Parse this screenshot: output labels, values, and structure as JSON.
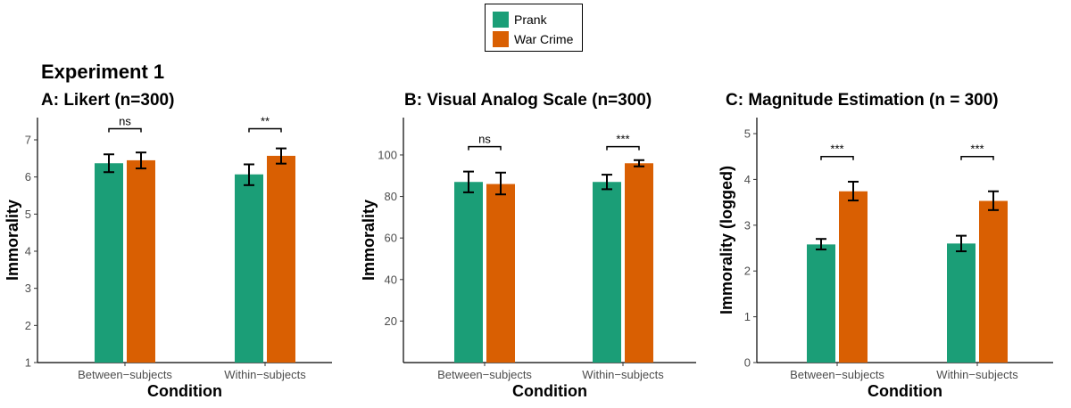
{
  "experiment_title": "Experiment 1",
  "legend": [
    {
      "label": "Prank",
      "color": "#1b9e77"
    },
    {
      "label": "War Crime",
      "color": "#d95f02"
    }
  ],
  "chart_data": [
    {
      "type": "bar",
      "title": "A: Likert (n=300)",
      "xlabel": "Condition",
      "ylabel": "Immorality",
      "ylim": [
        1,
        7.6
      ],
      "yticks": [
        1,
        2,
        3,
        4,
        5,
        6,
        7
      ],
      "categories": [
        "Between−subjects",
        "Within−subjects"
      ],
      "series": [
        {
          "name": "Prank",
          "values": [
            6.37,
            6.07
          ],
          "err_low": [
            6.13,
            5.78
          ],
          "err_high": [
            6.61,
            6.34
          ]
        },
        {
          "name": "War Crime",
          "values": [
            6.45,
            6.57
          ],
          "err_low": [
            6.23,
            6.36
          ],
          "err_high": [
            6.66,
            6.77
          ]
        }
      ],
      "significance": [
        "ns",
        "**"
      ],
      "sig_y": [
        7.3,
        7.3
      ]
    },
    {
      "type": "bar",
      "title": "B: Visual Analog Scale (n=300)",
      "xlabel": "Condition",
      "ylabel": "Immorality",
      "ylim": [
        0,
        118
      ],
      "yticks": [
        20,
        40,
        60,
        80,
        100
      ],
      "categories": [
        "Between−subjects",
        "Within−subjects"
      ],
      "series": [
        {
          "name": "Prank",
          "values": [
            87,
            87
          ],
          "err_low": [
            82,
            83.5
          ],
          "err_high": [
            92,
            90.5
          ]
        },
        {
          "name": "War Crime",
          "values": [
            86,
            96
          ],
          "err_low": [
            81,
            94.5
          ],
          "err_high": [
            91.5,
            97.5
          ]
        }
      ],
      "significance": [
        "ns",
        "***"
      ],
      "sig_y": [
        104,
        104
      ]
    },
    {
      "type": "bar",
      "title": "C: Magnitude Estimation (n = 300)",
      "xlabel": "Condition",
      "ylabel": "Immorality (logged)",
      "ylim": [
        0,
        5.35
      ],
      "yticks": [
        0,
        1,
        2,
        3,
        4,
        5
      ],
      "categories": [
        "Between−subjects",
        "Within−subjects"
      ],
      "series": [
        {
          "name": "Prank",
          "values": [
            2.58,
            2.6
          ],
          "err_low": [
            2.47,
            2.43
          ],
          "err_high": [
            2.7,
            2.77
          ]
        },
        {
          "name": "War Crime",
          "values": [
            3.74,
            3.53
          ],
          "err_low": [
            3.54,
            3.33
          ],
          "err_high": [
            3.95,
            3.74
          ]
        }
      ],
      "significance": [
        "***",
        "***"
      ],
      "sig_y": [
        4.5,
        4.5
      ]
    }
  ]
}
